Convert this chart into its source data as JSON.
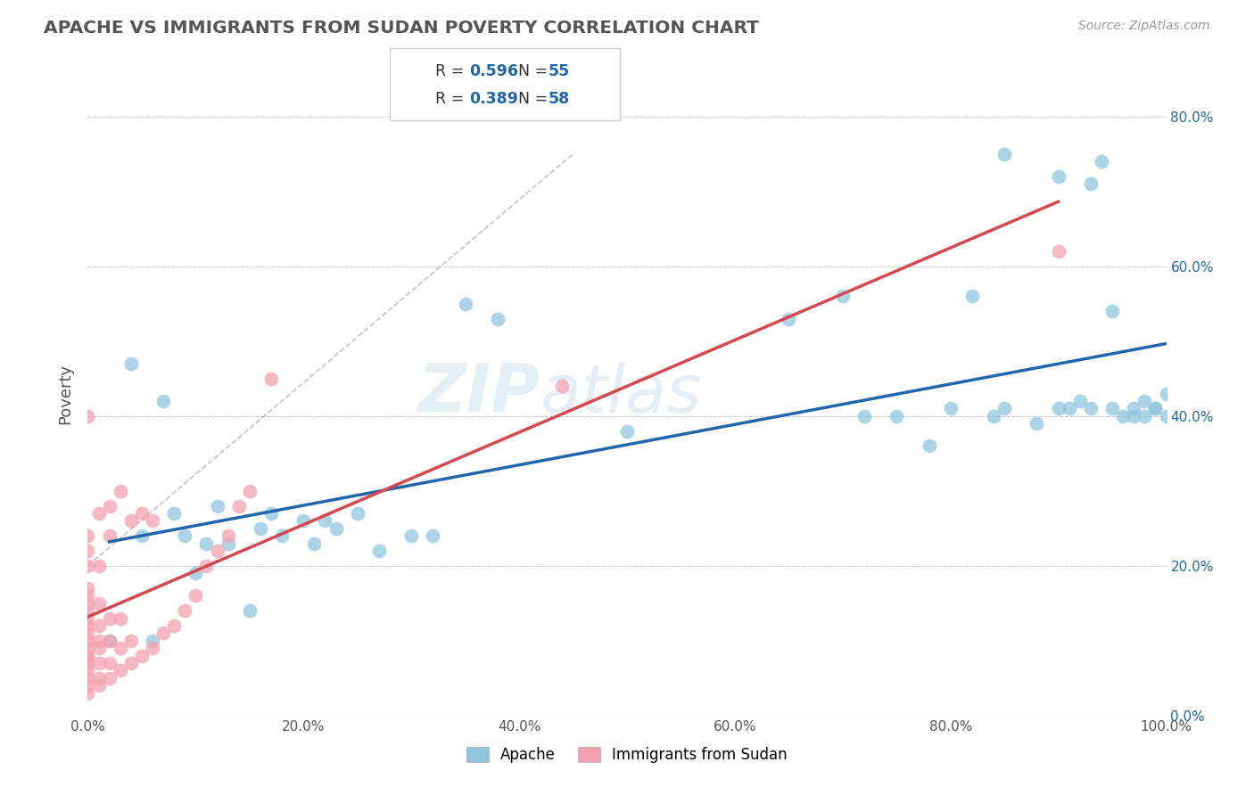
{
  "title": "APACHE VS IMMIGRANTS FROM SUDAN POVERTY CORRELATION CHART",
  "source": "Source: ZipAtlas.com",
  "ylabel": "Poverty",
  "blue_label": "Apache",
  "pink_label": "Immigrants from Sudan",
  "blue_R": 0.596,
  "blue_N": 55,
  "pink_R": 0.389,
  "pink_N": 58,
  "blue_color": "#92c5de",
  "pink_color": "#f4a0b0",
  "blue_line_color": "#2166ac",
  "pink_line_color": "#d6474f",
  "watermark_zip": "ZIP",
  "watermark_atlas": "atlas",
  "xlim": [
    0,
    1
  ],
  "ylim": [
    0,
    0.86
  ],
  "yticks": [
    0.0,
    0.2,
    0.4,
    0.6,
    0.8
  ],
  "ytick_labels": [
    "0.0%",
    "20.0%",
    "40.0%",
    "60.0%",
    "80.0%"
  ],
  "xticks": [
    0.0,
    0.2,
    0.4,
    0.6,
    0.8,
    1.0
  ],
  "xtick_labels": [
    "0.0%",
    "20.0%",
    "40.0%",
    "60.0%",
    "80.0%",
    "100.0%"
  ],
  "bg_color": "#ffffff",
  "grid_color": "#cccccc",
  "title_color": "#555555",
  "source_color": "#999999",
  "blue_x": [
    0.02,
    0.04,
    0.05,
    0.06,
    0.07,
    0.08,
    0.09,
    0.1,
    0.11,
    0.12,
    0.13,
    0.15,
    0.16,
    0.17,
    0.18,
    0.2,
    0.21,
    0.22,
    0.23,
    0.25,
    0.27,
    0.3,
    0.32,
    0.35,
    0.38,
    0.5,
    0.65,
    0.7,
    0.72,
    0.75,
    0.78,
    0.8,
    0.82,
    0.84,
    0.85,
    0.88,
    0.9,
    0.91,
    0.92,
    0.93,
    0.94,
    0.95,
    0.96,
    0.97,
    0.98,
    0.99,
    1.0,
    1.0,
    0.99,
    0.98,
    0.97,
    0.95,
    0.93,
    0.9,
    0.85
  ],
  "blue_y": [
    0.1,
    0.47,
    0.24,
    0.1,
    0.42,
    0.27,
    0.24,
    0.19,
    0.23,
    0.28,
    0.23,
    0.14,
    0.25,
    0.27,
    0.24,
    0.26,
    0.23,
    0.26,
    0.25,
    0.27,
    0.22,
    0.24,
    0.24,
    0.55,
    0.53,
    0.38,
    0.53,
    0.56,
    0.4,
    0.4,
    0.36,
    0.41,
    0.56,
    0.4,
    0.41,
    0.39,
    0.41,
    0.41,
    0.42,
    0.41,
    0.74,
    0.54,
    0.4,
    0.41,
    0.4,
    0.41,
    0.43,
    0.4,
    0.41,
    0.42,
    0.4,
    0.41,
    0.71,
    0.72,
    0.75
  ],
  "pink_x": [
    0.0,
    0.0,
    0.0,
    0.0,
    0.0,
    0.0,
    0.0,
    0.0,
    0.0,
    0.0,
    0.0,
    0.0,
    0.0,
    0.0,
    0.0,
    0.0,
    0.0,
    0.0,
    0.0,
    0.0,
    0.01,
    0.01,
    0.01,
    0.01,
    0.01,
    0.01,
    0.01,
    0.01,
    0.01,
    0.02,
    0.02,
    0.02,
    0.02,
    0.02,
    0.02,
    0.03,
    0.03,
    0.03,
    0.03,
    0.04,
    0.04,
    0.04,
    0.05,
    0.05,
    0.06,
    0.06,
    0.07,
    0.08,
    0.09,
    0.1,
    0.11,
    0.12,
    0.13,
    0.14,
    0.15,
    0.17,
    0.44,
    0.9
  ],
  "pink_y": [
    0.03,
    0.04,
    0.05,
    0.06,
    0.07,
    0.08,
    0.09,
    0.1,
    0.11,
    0.12,
    0.13,
    0.14,
    0.15,
    0.16,
    0.17,
    0.2,
    0.22,
    0.24,
    0.4,
    0.08,
    0.04,
    0.05,
    0.07,
    0.09,
    0.1,
    0.12,
    0.15,
    0.2,
    0.27,
    0.05,
    0.07,
    0.1,
    0.13,
    0.24,
    0.28,
    0.06,
    0.09,
    0.13,
    0.3,
    0.07,
    0.1,
    0.26,
    0.08,
    0.27,
    0.09,
    0.26,
    0.11,
    0.12,
    0.14,
    0.16,
    0.2,
    0.22,
    0.24,
    0.28,
    0.3,
    0.45,
    0.44,
    0.62
  ]
}
